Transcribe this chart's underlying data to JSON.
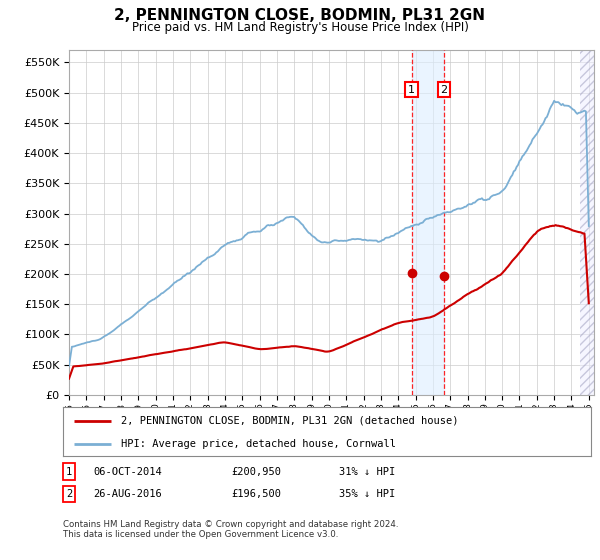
{
  "title": "2, PENNINGTON CLOSE, BODMIN, PL31 2GN",
  "subtitle": "Price paid vs. HM Land Registry's House Price Index (HPI)",
  "ylim": [
    0,
    570000
  ],
  "yticks": [
    0,
    50000,
    100000,
    150000,
    200000,
    250000,
    300000,
    350000,
    400000,
    450000,
    500000,
    550000
  ],
  "ytick_labels": [
    "£0",
    "£50K",
    "£100K",
    "£150K",
    "£200K",
    "£250K",
    "£300K",
    "£350K",
    "£400K",
    "£450K",
    "£500K",
    "£550K"
  ],
  "hpi_color": "#7bafd4",
  "price_color": "#cc0000",
  "transaction1": {
    "year": 2014.78,
    "price": 200950,
    "label": "1"
  },
  "transaction2": {
    "year": 2016.65,
    "price": 196500,
    "label": "2"
  },
  "legend1_label": "2, PENNINGTON CLOSE, BODMIN, PL31 2GN (detached house)",
  "legend2_label": "HPI: Average price, detached house, Cornwall",
  "table_row1": [
    "1",
    "06-OCT-2014",
    "£200,950",
    "31% ↓ HPI"
  ],
  "table_row2": [
    "2",
    "26-AUG-2016",
    "£196,500",
    "35% ↓ HPI"
  ],
  "footnote": "Contains HM Land Registry data © Crown copyright and database right 2024.\nThis data is licensed under the Open Government Licence v3.0.",
  "background_color": "#ffffff",
  "grid_color": "#cccccc",
  "shade_color": "#ddeeff",
  "hpi_seed": 10,
  "price_seed": 99
}
